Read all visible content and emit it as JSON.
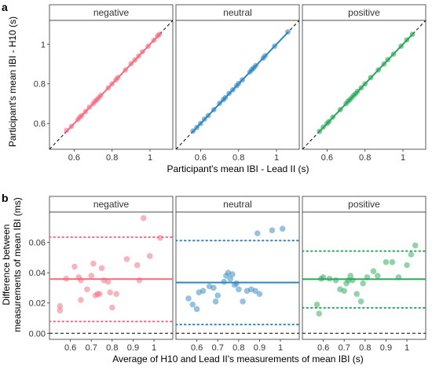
{
  "chart_data": [
    {
      "panel": "a",
      "type": "scatter",
      "xlabel": "Participant's mean IBI - Lead II (s)",
      "ylabel": "Participant's mean IBI - H10 (s)",
      "xlim": [
        0.47,
        1.12
      ],
      "ylim": [
        0.47,
        1.12
      ],
      "x_ticks": [
        0.6,
        0.8,
        1.0
      ],
      "x_tick_labels": [
        "0.6",
        "0.8",
        "1"
      ],
      "y_ticks": [
        0.6,
        0.8,
        1.0
      ],
      "y_tick_labels": [
        "0.6",
        "0.8",
        "1"
      ],
      "identity_line": true,
      "facets": [
        {
          "name": "negative",
          "color": "#F26A7E",
          "points": [
            [
              0.56,
              0.565
            ],
            [
              0.585,
              0.585
            ],
            [
              0.62,
              0.62
            ],
            [
              0.63,
              0.632
            ],
            [
              0.64,
              0.64
            ],
            [
              0.66,
              0.66
            ],
            [
              0.68,
              0.682
            ],
            [
              0.7,
              0.7
            ],
            [
              0.71,
              0.712
            ],
            [
              0.72,
              0.72
            ],
            [
              0.73,
              0.73
            ],
            [
              0.74,
              0.742
            ],
            [
              0.78,
              0.78
            ],
            [
              0.8,
              0.8
            ],
            [
              0.82,
              0.82
            ],
            [
              0.83,
              0.832
            ],
            [
              0.87,
              0.87
            ],
            [
              0.9,
              0.902
            ],
            [
              0.92,
              0.92
            ],
            [
              0.94,
              0.94
            ],
            [
              0.96,
              0.962
            ],
            [
              0.99,
              0.99
            ],
            [
              1.02,
              1.02
            ],
            [
              1.04,
              1.042
            ],
            [
              1.05,
              1.05
            ]
          ]
        },
        {
          "name": "neutral",
          "color": "#2E86C1",
          "points": [
            [
              0.56,
              0.562
            ],
            [
              0.58,
              0.58
            ],
            [
              0.6,
              0.6
            ],
            [
              0.62,
              0.622
            ],
            [
              0.64,
              0.64
            ],
            [
              0.67,
              0.67
            ],
            [
              0.7,
              0.702
            ],
            [
              0.72,
              0.72
            ],
            [
              0.73,
              0.73
            ],
            [
              0.75,
              0.752
            ],
            [
              0.77,
              0.77
            ],
            [
              0.79,
              0.79
            ],
            [
              0.8,
              0.802
            ],
            [
              0.82,
              0.82
            ],
            [
              0.86,
              0.86
            ],
            [
              0.87,
              0.872
            ],
            [
              0.88,
              0.88
            ],
            [
              0.89,
              0.892
            ],
            [
              0.93,
              0.93
            ],
            [
              0.94,
              0.942
            ],
            [
              0.99,
              0.99
            ],
            [
              1.06,
              1.062
            ]
          ]
        },
        {
          "name": "positive",
          "color": "#2AA65A",
          "points": [
            [
              0.56,
              0.56
            ],
            [
              0.58,
              0.582
            ],
            [
              0.6,
              0.6
            ],
            [
              0.61,
              0.61
            ],
            [
              0.63,
              0.632
            ],
            [
              0.67,
              0.67
            ],
            [
              0.7,
              0.7
            ],
            [
              0.71,
              0.712
            ],
            [
              0.72,
              0.72
            ],
            [
              0.73,
              0.73
            ],
            [
              0.74,
              0.742
            ],
            [
              0.75,
              0.75
            ],
            [
              0.76,
              0.762
            ],
            [
              0.78,
              0.78
            ],
            [
              0.8,
              0.8
            ],
            [
              0.83,
              0.832
            ],
            [
              0.87,
              0.87
            ],
            [
              0.9,
              0.9
            ],
            [
              0.92,
              0.922
            ],
            [
              0.95,
              0.95
            ],
            [
              0.99,
              0.99
            ],
            [
              1.02,
              1.022
            ],
            [
              1.05,
              1.05
            ]
          ]
        }
      ]
    },
    {
      "panel": "b",
      "type": "scatter",
      "xlabel": "Average of H10 and Lead II's measurements of mean IBI (s)",
      "ylabel": "Difference between\nmeasurements of mean IBI (ms)",
      "xlim": [
        0.5,
        1.09
      ],
      "ylim": [
        -0.004,
        0.08
      ],
      "x_ticks": [
        0.6,
        0.7,
        0.8,
        0.9,
        1.0
      ],
      "x_tick_labels": [
        "0.6",
        "0.7",
        "0.8",
        "0.9",
        "1"
      ],
      "y_ticks": [
        0.0,
        0.02,
        0.04,
        0.06
      ],
      "y_tick_labels": [
        "0.00",
        "0.02",
        "0.04",
        "0.06"
      ],
      "zero_line": 0,
      "facets": [
        {
          "name": "negative",
          "color": "#F26A7E",
          "mean": 0.0358,
          "loa_upper": 0.0635,
          "loa_lower": 0.0078,
          "points": [
            [
              0.55,
              0.018
            ],
            [
              0.55,
              0.015
            ],
            [
              0.58,
              0.036
            ],
            [
              0.62,
              0.044
            ],
            [
              0.64,
              0.037
            ],
            [
              0.65,
              0.035
            ],
            [
              0.65,
              0.022
            ],
            [
              0.68,
              0.029
            ],
            [
              0.7,
              0.038
            ],
            [
              0.71,
              0.046
            ],
            [
              0.72,
              0.025
            ],
            [
              0.73,
              0.026
            ],
            [
              0.74,
              0.026
            ],
            [
              0.75,
              0.043
            ],
            [
              0.76,
              0.035
            ],
            [
              0.78,
              0.034
            ],
            [
              0.79,
              0.027
            ],
            [
              0.8,
              0.017
            ],
            [
              0.82,
              0.026
            ],
            [
              0.87,
              0.049
            ],
            [
              0.92,
              0.045
            ],
            [
              0.93,
              0.035
            ],
            [
              0.95,
              0.076
            ],
            [
              0.98,
              0.051
            ],
            [
              1.03,
              0.063
            ]
          ]
        },
        {
          "name": "neutral",
          "color": "#2E86C1",
          "mean": 0.0335,
          "loa_upper": 0.0612,
          "loa_lower": 0.0058,
          "points": [
            [
              0.56,
              0.023
            ],
            [
              0.58,
              0.019
            ],
            [
              0.6,
              0.016
            ],
            [
              0.61,
              0.027
            ],
            [
              0.63,
              0.028
            ],
            [
              0.66,
              0.031
            ],
            [
              0.68,
              0.03
            ],
            [
              0.69,
              0.021
            ],
            [
              0.7,
              0.025
            ],
            [
              0.73,
              0.034
            ],
            [
              0.74,
              0.038
            ],
            [
              0.75,
              0.04
            ],
            [
              0.76,
              0.036
            ],
            [
              0.77,
              0.039
            ],
            [
              0.78,
              0.032
            ],
            [
              0.79,
              0.033
            ],
            [
              0.8,
              0.029
            ],
            [
              0.82,
              0.021
            ],
            [
              0.84,
              0.028
            ],
            [
              0.86,
              0.029
            ],
            [
              0.88,
              0.028
            ],
            [
              0.89,
              0.066
            ],
            [
              0.9,
              0.026
            ],
            [
              0.96,
              0.068
            ],
            [
              1.01,
              0.069
            ]
          ]
        },
        {
          "name": "positive",
          "color": "#2AA65A",
          "mean": 0.0357,
          "loa_upper": 0.0543,
          "loa_lower": 0.0168,
          "points": [
            [
              0.57,
              0.019
            ],
            [
              0.58,
              0.013
            ],
            [
              0.59,
              0.036
            ],
            [
              0.6,
              0.037
            ],
            [
              0.63,
              0.036
            ],
            [
              0.66,
              0.035
            ],
            [
              0.68,
              0.029
            ],
            [
              0.7,
              0.028
            ],
            [
              0.71,
              0.033
            ],
            [
              0.72,
              0.035
            ],
            [
              0.73,
              0.038
            ],
            [
              0.74,
              0.035
            ],
            [
              0.76,
              0.026
            ],
            [
              0.78,
              0.021
            ],
            [
              0.79,
              0.033
            ],
            [
              0.81,
              0.037
            ],
            [
              0.84,
              0.041
            ],
            [
              0.86,
              0.038
            ],
            [
              0.9,
              0.047
            ],
            [
              0.93,
              0.047
            ],
            [
              0.96,
              0.037
            ],
            [
              1.0,
              0.045
            ],
            [
              1.02,
              0.052
            ],
            [
              1.04,
              0.058
            ]
          ]
        }
      ]
    }
  ]
}
